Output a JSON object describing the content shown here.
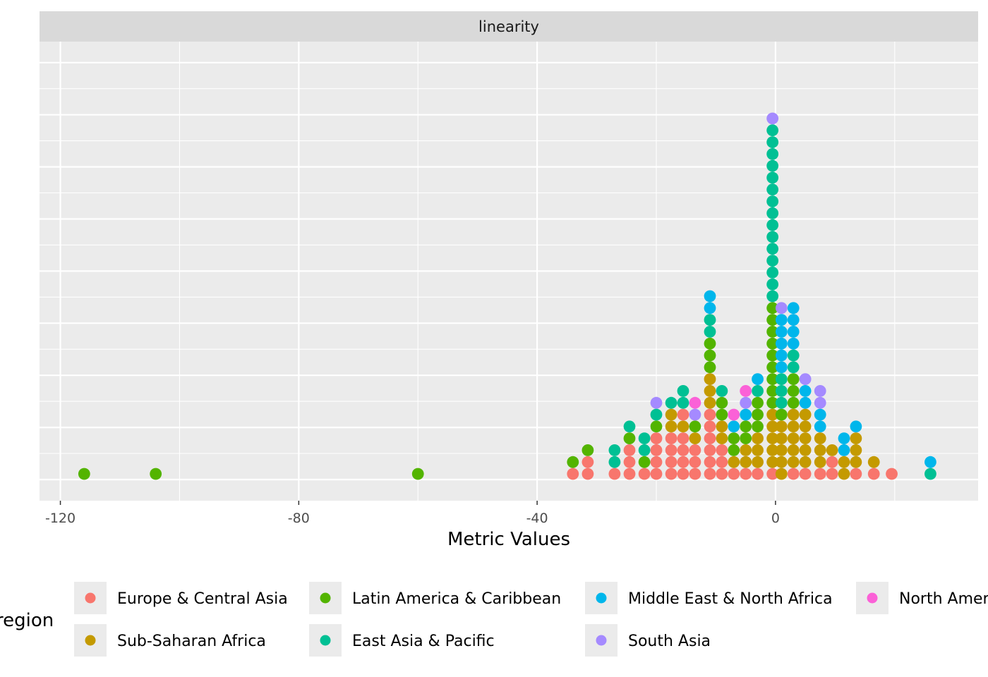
{
  "chart_data": {
    "type": "scatter",
    "subtype": "dotplot",
    "facet_label": "linearity",
    "xlabel": "Metric Values",
    "ylabel": "",
    "xlim": [
      -123.5,
      34.0
    ],
    "x_ticks": [
      -120,
      -80,
      -40,
      0
    ],
    "x_tick_labels": [
      "-120",
      "-80",
      "-40",
      "0"
    ],
    "binwidth": 2.4,
    "grid": true,
    "legend": {
      "title": "region",
      "position": "bottom",
      "entries": [
        "Europe & Central Asia",
        "Latin America & Caribbean",
        "Middle East & North Africa",
        "North America",
        "Sub-Saharan Africa",
        "East Asia & Pacific",
        "South Asia"
      ]
    },
    "colors": {
      "Europe & Central Asia": "#F8766D",
      "Latin America & Caribbean": "#53B400",
      "Middle East & North Africa": "#00B6EB",
      "North America": "#FB61D7",
      "Sub-Saharan Africa": "#C49A00",
      "East Asia & Pacific": "#00C094",
      "South Asia": "#A58AFF"
    },
    "stacks": [
      {
        "x": -116.0,
        "regions": [
          "Latin America & Caribbean"
        ]
      },
      {
        "x": -104.0,
        "regions": [
          "Latin America & Caribbean"
        ]
      },
      {
        "x": -60.0,
        "regions": [
          "Latin America & Caribbean"
        ]
      },
      {
        "x": -34.0,
        "regions": [
          "Europe & Central Asia",
          "Latin America & Caribbean"
        ]
      },
      {
        "x": -31.5,
        "regions": [
          "Europe & Central Asia",
          "Europe & Central Asia",
          "Latin America & Caribbean"
        ]
      },
      {
        "x": -27.0,
        "regions": [
          "Europe & Central Asia",
          "East Asia & Pacific",
          "East Asia & Pacific"
        ]
      },
      {
        "x": -24.5,
        "regions": [
          "Europe & Central Asia",
          "Europe & Central Asia",
          "Europe & Central Asia",
          "Latin America & Caribbean",
          "East Asia & Pacific"
        ]
      },
      {
        "x": -22.0,
        "regions": [
          "Europe & Central Asia",
          "Latin America & Caribbean",
          "East Asia & Pacific",
          "East Asia & Pacific"
        ]
      },
      {
        "x": -20.0,
        "regions": [
          "Europe & Central Asia",
          "Europe & Central Asia",
          "Europe & Central Asia",
          "Europe & Central Asia",
          "Latin America & Caribbean",
          "East Asia & Pacific",
          "South Asia"
        ]
      },
      {
        "x": -17.5,
        "regions": [
          "Europe & Central Asia",
          "Europe & Central Asia",
          "Europe & Central Asia",
          "Europe & Central Asia",
          "Sub-Saharan Africa",
          "Sub-Saharan Africa",
          "East Asia & Pacific"
        ]
      },
      {
        "x": -15.5,
        "regions": [
          "Europe & Central Asia",
          "Europe & Central Asia",
          "Europe & Central Asia",
          "Europe & Central Asia",
          "Sub-Saharan Africa",
          "Europe & Central Asia",
          "East Asia & Pacific",
          "East Asia & Pacific"
        ]
      },
      {
        "x": -13.5,
        "regions": [
          "Europe & Central Asia",
          "Europe & Central Asia",
          "Europe & Central Asia",
          "Sub-Saharan Africa",
          "Latin America & Caribbean",
          "South Asia",
          "North America"
        ]
      },
      {
        "x": -11.0,
        "regions": [
          "Europe & Central Asia",
          "Europe & Central Asia",
          "Europe & Central Asia",
          "Europe & Central Asia",
          "Europe & Central Asia",
          "Europe & Central Asia",
          "Sub-Saharan Africa",
          "Sub-Saharan Africa",
          "Sub-Saharan Africa",
          "Latin America & Caribbean",
          "Latin America & Caribbean",
          "Latin America & Caribbean",
          "East Asia & Pacific",
          "East Asia & Pacific",
          "Middle East & North Africa",
          "Middle East & North Africa"
        ]
      },
      {
        "x": -9.0,
        "regions": [
          "Europe & Central Asia",
          "Europe & Central Asia",
          "Europe & Central Asia",
          "Sub-Saharan Africa",
          "Sub-Saharan Africa",
          "Latin America & Caribbean",
          "Latin America & Caribbean",
          "East Asia & Pacific"
        ]
      },
      {
        "x": -7.0,
        "regions": [
          "Europe & Central Asia",
          "Sub-Saharan Africa",
          "Latin America & Caribbean",
          "Latin America & Caribbean",
          "Middle East & North Africa",
          "North America"
        ]
      },
      {
        "x": -5.0,
        "regions": [
          "Europe & Central Asia",
          "Sub-Saharan Africa",
          "Sub-Saharan Africa",
          "Latin America & Caribbean",
          "Latin America & Caribbean",
          "Middle East & North Africa",
          "South Asia",
          "North America"
        ]
      },
      {
        "x": -3.0,
        "regions": [
          "Europe & Central Asia",
          "Sub-Saharan Africa",
          "Sub-Saharan Africa",
          "Sub-Saharan Africa",
          "Latin America & Caribbean",
          "Latin America & Caribbean",
          "Latin America & Caribbean",
          "East Asia & Pacific",
          "Middle East & North Africa"
        ]
      },
      {
        "x": -0.5,
        "regions": [
          "Europe & Central Asia",
          "Sub-Saharan Africa",
          "Sub-Saharan Africa",
          "Sub-Saharan Africa",
          "Sub-Saharan Africa",
          "Sub-Saharan Africa",
          "Latin America & Caribbean",
          "Latin America & Caribbean",
          "Latin America & Caribbean",
          "Latin America & Caribbean",
          "Latin America & Caribbean",
          "Latin America & Caribbean",
          "Latin America & Caribbean",
          "Latin America & Caribbean",
          "Latin America & Caribbean",
          "East Asia & Pacific",
          "East Asia & Pacific",
          "East Asia & Pacific",
          "East Asia & Pacific",
          "East Asia & Pacific",
          "East Asia & Pacific",
          "East Asia & Pacific",
          "East Asia & Pacific",
          "East Asia & Pacific",
          "East Asia & Pacific",
          "East Asia & Pacific",
          "East Asia & Pacific",
          "East Asia & Pacific",
          "East Asia & Pacific",
          "East Asia & Pacific",
          "South Asia"
        ]
      },
      {
        "x": 1.0,
        "regions": [
          "Sub-Saharan Africa",
          "Sub-Saharan Africa",
          "Sub-Saharan Africa",
          "Sub-Saharan Africa",
          "Sub-Saharan Africa",
          "Latin America & Caribbean",
          "East Asia & Pacific",
          "East Asia & Pacific",
          "East Asia & Pacific",
          "Middle East & North Africa",
          "Middle East & North Africa",
          "Middle East & North Africa",
          "Middle East & North Africa",
          "Middle East & North Africa",
          "South Asia"
        ]
      },
      {
        "x": 3.0,
        "regions": [
          "Europe & Central Asia",
          "Sub-Saharan Africa",
          "Sub-Saharan Africa",
          "Sub-Saharan Africa",
          "Sub-Saharan Africa",
          "Sub-Saharan Africa",
          "Latin America & Caribbean",
          "Latin America & Caribbean",
          "Latin America & Caribbean",
          "East Asia & Pacific",
          "East Asia & Pacific",
          "Middle East & North Africa",
          "Middle East & North Africa",
          "Middle East & North Africa",
          "Middle East & North Africa"
        ]
      },
      {
        "x": 5.0,
        "regions": [
          "Europe & Central Asia",
          "Sub-Saharan Africa",
          "Sub-Saharan Africa",
          "Sub-Saharan Africa",
          "Sub-Saharan Africa",
          "Sub-Saharan Africa",
          "Middle East & North Africa",
          "Middle East & North Africa",
          "South Asia"
        ]
      },
      {
        "x": 7.5,
        "regions": [
          "Europe & Central Asia",
          "Sub-Saharan Africa",
          "Sub-Saharan Africa",
          "Sub-Saharan Africa",
          "Middle East & North Africa",
          "Middle East & North Africa",
          "South Asia",
          "South Asia"
        ]
      },
      {
        "x": 9.5,
        "regions": [
          "Europe & Central Asia",
          "Europe & Central Asia",
          "Sub-Saharan Africa"
        ]
      },
      {
        "x": 11.5,
        "regions": [
          "Sub-Saharan Africa",
          "Sub-Saharan Africa",
          "Middle East & North Africa",
          "Middle East & North Africa"
        ]
      },
      {
        "x": 13.5,
        "regions": [
          "Europe & Central Asia",
          "Sub-Saharan Africa",
          "Sub-Saharan Africa",
          "Sub-Saharan Africa",
          "Middle East & North Africa"
        ]
      },
      {
        "x": 16.5,
        "regions": [
          "Europe & Central Asia",
          "Sub-Saharan Africa"
        ]
      },
      {
        "x": 19.5,
        "regions": [
          "Europe & Central Asia"
        ]
      },
      {
        "x": 26.0,
        "regions": [
          "East Asia & Pacific",
          "Middle East & North Africa"
        ]
      }
    ]
  }
}
